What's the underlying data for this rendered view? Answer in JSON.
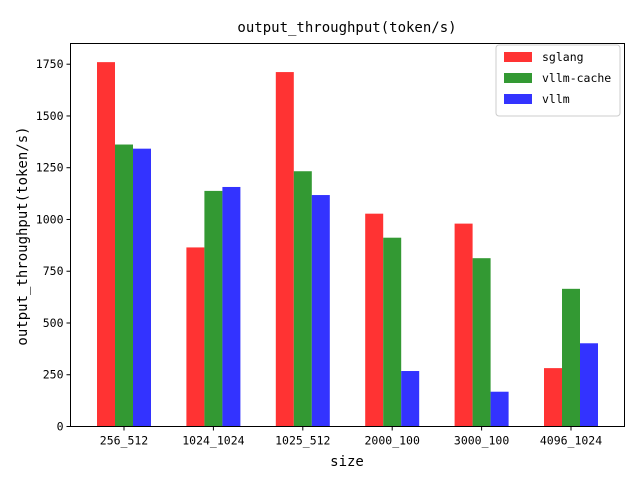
{
  "chart_data": {
    "type": "bar",
    "title": "output_throughput(token/s)",
    "xlabel": "size",
    "ylabel": "output_throughput(token/s)",
    "categories": [
      "256_512",
      "1024_1024",
      "1025_512",
      "2000_100",
      "3000_100",
      "4096_1024"
    ],
    "series": [
      {
        "name": "sglang",
        "color": "#ff3333",
        "values": [
          1760,
          865,
          1712,
          1028,
          980,
          282
        ]
      },
      {
        "name": "vllm-cache",
        "color": "#339933",
        "values": [
          1362,
          1138,
          1233,
          912,
          813,
          665
        ]
      },
      {
        "name": "vllm",
        "color": "#3333ff",
        "values": [
          1342,
          1157,
          1118,
          268,
          168,
          402
        ]
      }
    ],
    "ylim": [
      0,
      1850
    ],
    "yticks": [
      0,
      250,
      500,
      750,
      1000,
      1250,
      1500,
      1750
    ],
    "legend_position": "top-right",
    "grid": false
  }
}
